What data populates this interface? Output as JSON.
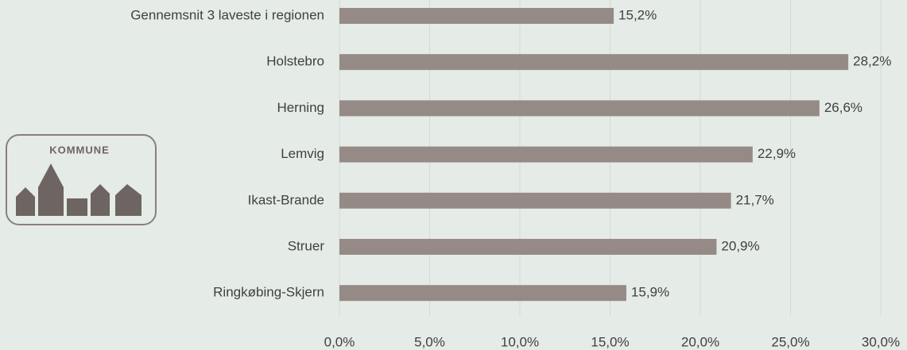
{
  "logo": {
    "label": "KOMMUNE"
  },
  "chart_data": {
    "type": "barh",
    "categories": [
      "Gennemsnit 3 laveste i regionen",
      "Holstebro",
      "Herning",
      "Lemvig",
      "Ikast-Brande",
      "Struer",
      "Ringkøbing-Skjern"
    ],
    "values": [
      15.2,
      28.2,
      26.6,
      22.9,
      21.7,
      20.9,
      15.9
    ],
    "value_labels": [
      "15,2%",
      "28,2%",
      "26,6%",
      "22,9%",
      "21,7%",
      "20,9%",
      "15,9%"
    ],
    "color": "#968a87",
    "xlim": [
      0,
      30
    ],
    "xticks": [
      {
        "value": 0,
        "label": "0,0%"
      },
      {
        "value": 5,
        "label": "5,0%"
      },
      {
        "value": 10,
        "label": "10,0%"
      },
      {
        "value": 15,
        "label": "15,0%"
      },
      {
        "value": 20,
        "label": "20,0%"
      },
      {
        "value": 25,
        "label": "25,0%"
      },
      {
        "value": 30,
        "label": "30,0%"
      }
    ],
    "grid": true
  }
}
